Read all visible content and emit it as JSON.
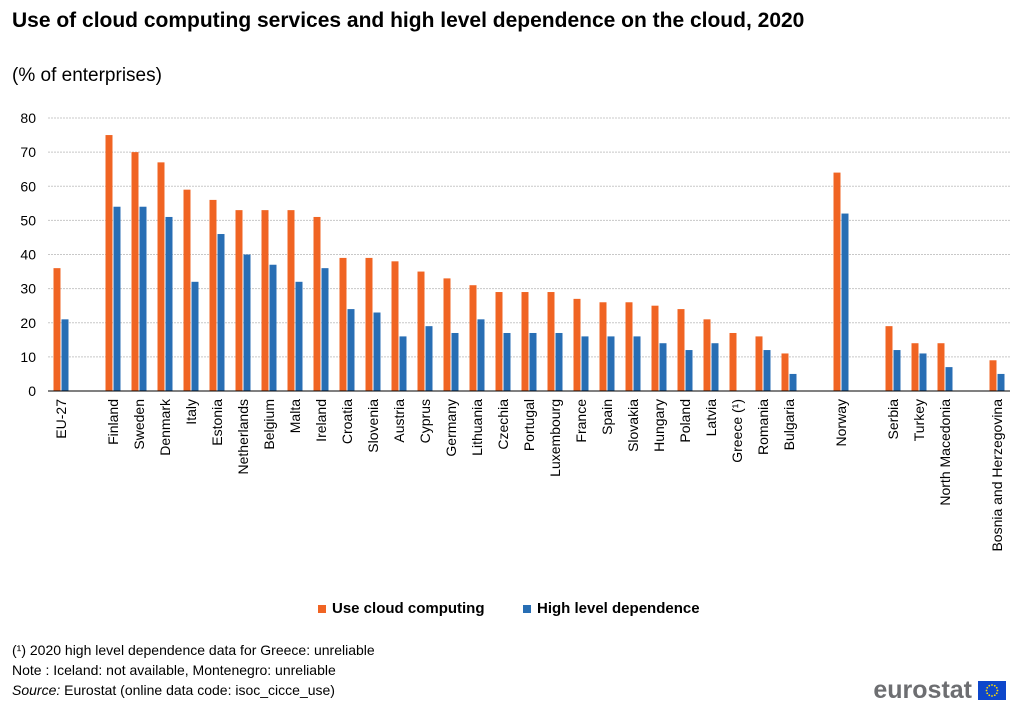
{
  "title": "Use of cloud computing services and high level dependence on the cloud, 2020",
  "subtitle": "(% of enterprises)",
  "colors": {
    "use_cloud": "#f06423",
    "high_dependence": "#286eb4",
    "grid": "#c8c8c8",
    "axis": "#000000"
  },
  "legend": {
    "use_cloud": "Use cloud computing",
    "high_dependence": "High level dependence"
  },
  "notes": {
    "footnote": "(¹) 2020 high level dependence data for Greece: unreliable",
    "note": "Note : Iceland: not available, Montenegro: unreliable",
    "source_label": "Source:",
    "source_text": " Eurostat (online data code: isoc_cicce_use)"
  },
  "logo": {
    "text": "eurostat",
    "icon": "eu-flag-icon"
  },
  "chart_data": {
    "type": "bar",
    "ylim": [
      0,
      80
    ],
    "yticks": [
      0,
      10,
      20,
      30,
      40,
      50,
      60,
      70,
      80
    ],
    "grid": true,
    "legend_position": "bottom",
    "categories": [
      "EU-27",
      "",
      "Finland",
      "Sweden",
      "Denmark",
      "Italy",
      "Estonia",
      "Netherlands",
      "Belgium",
      "Malta",
      "Ireland",
      "Croatia",
      "Slovenia",
      "Austria",
      "Cyprus",
      "Germany",
      "Lithuania",
      "Czechia",
      "Portugal",
      "Luxembourg",
      "France",
      "Spain",
      "Slovakia",
      "Hungary",
      "Poland",
      "Latvia",
      "Greece (¹)",
      "Romania",
      "Bulgaria",
      "",
      "Norway",
      "",
      "Serbia",
      "Turkey",
      "North Macedonia",
      "",
      "Bosnia and Herzegovina"
    ],
    "series": [
      {
        "name": "Use cloud computing",
        "values": [
          36,
          null,
          75,
          70,
          67,
          59,
          56,
          53,
          53,
          53,
          51,
          39,
          39,
          38,
          35,
          33,
          31,
          29,
          29,
          29,
          27,
          26,
          26,
          25,
          24,
          21,
          17,
          16,
          11,
          null,
          64,
          null,
          19,
          14,
          14,
          null,
          9
        ]
      },
      {
        "name": "High level dependence",
        "values": [
          21,
          null,
          54,
          54,
          51,
          32,
          46,
          40,
          37,
          32,
          36,
          24,
          23,
          16,
          19,
          17,
          21,
          17,
          17,
          17,
          16,
          16,
          16,
          14,
          12,
          14,
          null,
          12,
          5,
          null,
          52,
          null,
          12,
          11,
          7,
          null,
          5
        ]
      }
    ]
  }
}
